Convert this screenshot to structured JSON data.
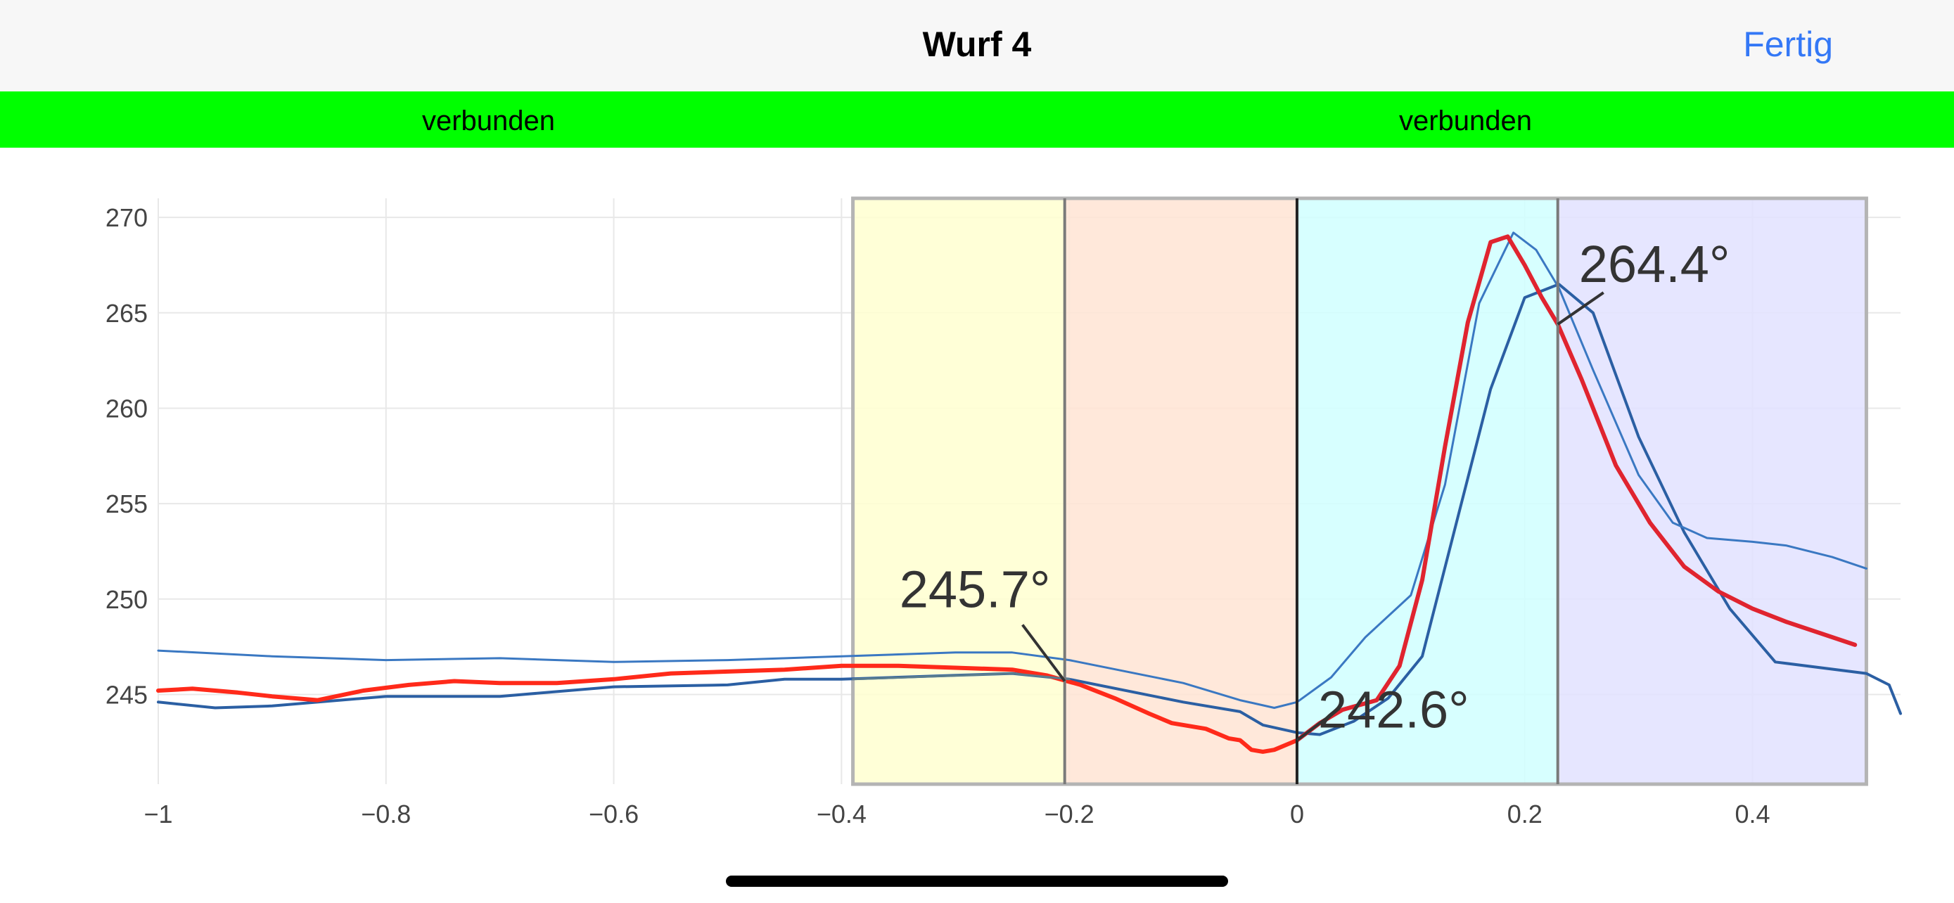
{
  "header": {
    "title": "Wurf 4",
    "done_label": "Fertig"
  },
  "status": {
    "left": "verbunden",
    "right": "verbunden",
    "color": "#00ff00"
  },
  "chart_data": {
    "type": "line",
    "title": "",
    "xlabel": "",
    "ylabel": "",
    "xlim": [
      -1,
      0.53
    ],
    "ylim": [
      240.3,
      271
    ],
    "x_ticks": [
      -1,
      -0.8,
      -0.6,
      -0.4,
      -0.2,
      0,
      0.2,
      0.4
    ],
    "x_tick_labels": [
      "−1",
      "−0.8",
      "−0.6",
      "−0.4",
      "−0.2",
      "0",
      "0.2",
      "0.4"
    ],
    "y_ticks": [
      245,
      250,
      255,
      260,
      265,
      270
    ],
    "y_tick_labels": [
      "245",
      "250",
      "255",
      "260",
      "265",
      "270"
    ],
    "grid": true,
    "phases": [
      {
        "x0": -0.39,
        "x1": -0.204,
        "color": "#ffffd0"
      },
      {
        "x0": -0.204,
        "x1": 0.0,
        "color": "#ffe4d3"
      },
      {
        "x0": 0.0,
        "x1": 0.229,
        "color": "#d0ffff"
      },
      {
        "x0": 0.229,
        "x1": 0.5,
        "color": "#e2e2ff"
      }
    ],
    "markers": [
      -0.204,
      0.0,
      0.229
    ],
    "series": [
      {
        "color": "#2b5fa3",
        "width": 4,
        "x": [
          -1,
          -0.95,
          -0.9,
          -0.8,
          -0.7,
          -0.6,
          -0.5,
          -0.45,
          -0.4,
          -0.3,
          -0.25,
          -0.2,
          -0.1,
          -0.05,
          -0.03,
          0.0,
          0.02,
          0.05,
          0.08,
          0.11,
          0.14,
          0.17,
          0.2,
          0.23,
          0.26,
          0.3,
          0.34,
          0.38,
          0.42,
          0.5,
          0.52,
          0.53
        ],
        "y": [
          244.6,
          244.3,
          244.4,
          244.9,
          244.9,
          245.4,
          245.5,
          245.8,
          245.8,
          246.0,
          246.1,
          245.8,
          244.6,
          244.1,
          243.4,
          243.0,
          242.9,
          243.6,
          244.8,
          247.0,
          254.0,
          261.0,
          265.8,
          266.5,
          265.0,
          258.5,
          253.5,
          249.5,
          246.7,
          246.1,
          245.5,
          244.0
        ]
      },
      {
        "color": "#3a78c2",
        "width": 3,
        "x": [
          -1,
          -0.9,
          -0.8,
          -0.7,
          -0.6,
          -0.5,
          -0.4,
          -0.3,
          -0.25,
          -0.2,
          -0.1,
          -0.05,
          -0.02,
          0.0,
          0.03,
          0.06,
          0.1,
          0.13,
          0.16,
          0.19,
          0.21,
          0.23,
          0.26,
          0.3,
          0.33,
          0.36,
          0.4,
          0.43,
          0.47,
          0.5
        ],
        "y": [
          247.3,
          247.0,
          246.8,
          246.9,
          246.7,
          246.8,
          247.0,
          247.2,
          247.2,
          246.8,
          245.6,
          244.7,
          244.3,
          244.6,
          245.9,
          248.0,
          250.2,
          256.0,
          265.5,
          269.2,
          268.3,
          266.3,
          262.0,
          256.5,
          254.0,
          253.2,
          253.0,
          252.8,
          252.2,
          251.6
        ]
      },
      {
        "color": "#ff2a1a",
        "width": 6,
        "x": [
          -1,
          -0.97,
          -0.93,
          -0.9,
          -0.86,
          -0.82,
          -0.78,
          -0.74,
          -0.7,
          -0.65,
          -0.6,
          -0.55,
          -0.5,
          -0.45,
          -0.4,
          -0.35,
          -0.3,
          -0.25,
          -0.22,
          -0.19,
          -0.16,
          -0.13,
          -0.11,
          -0.08,
          -0.06,
          -0.05,
          -0.04,
          -0.03,
          -0.02,
          0.0
        ],
        "y": [
          245.2,
          245.3,
          245.1,
          244.9,
          244.7,
          245.2,
          245.5,
          245.7,
          245.6,
          245.6,
          245.8,
          246.1,
          246.2,
          246.3,
          246.5,
          246.5,
          246.4,
          246.3,
          246.0,
          245.5,
          244.8,
          244.0,
          243.5,
          243.2,
          242.7,
          242.6,
          242.1,
          242.0,
          242.1,
          242.6
        ]
      },
      {
        "color": "#e0242f",
        "width": 6,
        "x": [
          0.0,
          0.02,
          0.04,
          0.07,
          0.09,
          0.11,
          0.13,
          0.15,
          0.17,
          0.185,
          0.2,
          0.215,
          0.229,
          0.25,
          0.28,
          0.31,
          0.34,
          0.37,
          0.4,
          0.43,
          0.46,
          0.49
        ],
        "y": [
          242.6,
          243.5,
          244.2,
          244.7,
          246.5,
          251.0,
          258.0,
          264.5,
          268.7,
          269.0,
          267.5,
          265.8,
          264.4,
          261.5,
          257.0,
          254.0,
          251.7,
          250.4,
          249.5,
          248.8,
          248.2,
          247.6
        ]
      },
      {
        "color": "#5a7d8f",
        "width": 3,
        "x": [
          -0.39,
          -0.25,
          -0.2
        ],
        "y": [
          245.8,
          246.1,
          245.8
        ]
      }
    ],
    "annotations": [
      {
        "text": "245.7°",
        "x": -0.204,
        "y": 245.7
      },
      {
        "text": "242.6°",
        "x": 0.0,
        "y": 242.6
      },
      {
        "text": "264.4°",
        "x": 0.229,
        "y": 264.4
      }
    ]
  }
}
